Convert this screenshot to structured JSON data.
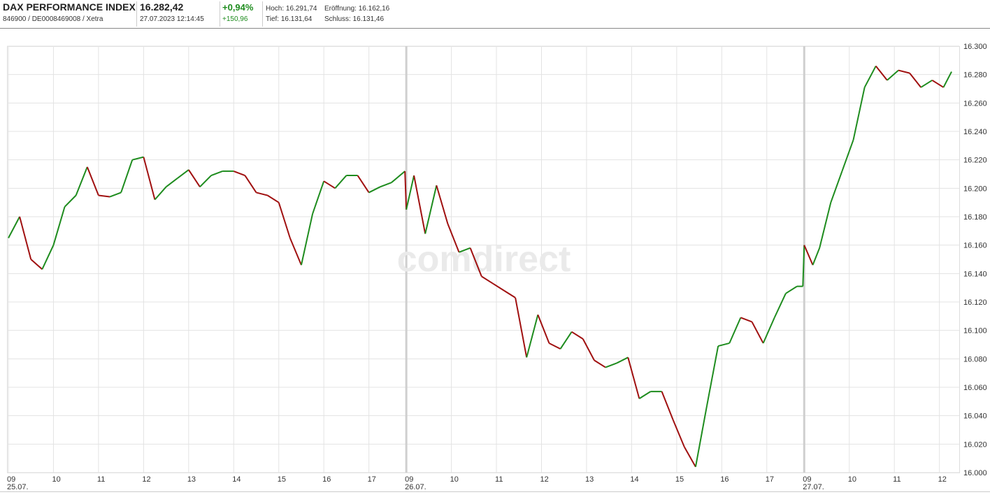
{
  "header": {
    "title": "DAX PERFORMANCE INDEX",
    "subtitle": "846900 / DE0008469008 / Xetra",
    "price": "16.282,42",
    "timestamp": "27.07.2023 12:14:45",
    "change_pct": "+0,94%",
    "change_abs": "+150,96",
    "high": "Hoch: 16.291,74",
    "open": "Eröffnung: 16.162,16",
    "low": "Tief: 16.131,64",
    "close": "Schluss: 16.131,46"
  },
  "watermark": "comdirect",
  "chart_data": {
    "type": "line",
    "up_color": "#1e8c1e",
    "down_color": "#a01010",
    "grid": true,
    "xlim": [
      0,
      21.1
    ],
    "ylim": [
      16000,
      16300
    ],
    "yticks": [
      {
        "value": 16000,
        "label": "16.000"
      },
      {
        "value": 16020,
        "label": "16.020"
      },
      {
        "value": 16040,
        "label": "16.040"
      },
      {
        "value": 16060,
        "label": "16.060"
      },
      {
        "value": 16080,
        "label": "16.080"
      },
      {
        "value": 16100,
        "label": "16.100"
      },
      {
        "value": 16120,
        "label": "16.120"
      },
      {
        "value": 16140,
        "label": "16.140"
      },
      {
        "value": 16160,
        "label": "16.160"
      },
      {
        "value": 16180,
        "label": "16.180"
      },
      {
        "value": 16200,
        "label": "16.200"
      },
      {
        "value": 16220,
        "label": "16.220"
      },
      {
        "value": 16240,
        "label": "16.240"
      },
      {
        "value": 16260,
        "label": "16.260"
      },
      {
        "value": 16280,
        "label": "16.280"
      },
      {
        "value": 16300,
        "label": "16.300"
      }
    ],
    "xticks": [
      {
        "value": 0,
        "label": "09"
      },
      {
        "value": 1,
        "label": "10"
      },
      {
        "value": 2,
        "label": "11"
      },
      {
        "value": 3,
        "label": "12"
      },
      {
        "value": 4,
        "label": "13"
      },
      {
        "value": 5,
        "label": "14"
      },
      {
        "value": 6,
        "label": "15"
      },
      {
        "value": 7,
        "label": "16"
      },
      {
        "value": 8,
        "label": "17"
      },
      {
        "value": 8.83,
        "label": "09"
      },
      {
        "value": 9.83,
        "label": "10"
      },
      {
        "value": 10.83,
        "label": "11"
      },
      {
        "value": 11.83,
        "label": "12"
      },
      {
        "value": 12.83,
        "label": "13"
      },
      {
        "value": 13.83,
        "label": "14"
      },
      {
        "value": 14.83,
        "label": "15"
      },
      {
        "value": 15.83,
        "label": "16"
      },
      {
        "value": 16.83,
        "label": "17"
      },
      {
        "value": 17.66,
        "label": "09"
      },
      {
        "value": 18.66,
        "label": "10"
      },
      {
        "value": 19.66,
        "label": "11"
      },
      {
        "value": 20.66,
        "label": "12"
      }
    ],
    "dates": [
      "25.07.",
      "26.07.",
      "27.07."
    ],
    "x": [
      0,
      0.25,
      0.5,
      0.75,
      1,
      1.25,
      1.5,
      1.75,
      2,
      2.25,
      2.5,
      2.75,
      3,
      3.25,
      3.5,
      3.75,
      4,
      4.25,
      4.5,
      4.75,
      5,
      5.25,
      5.5,
      5.75,
      6,
      6.25,
      6.5,
      6.75,
      7,
      7.25,
      7.5,
      7.75,
      8,
      8.25,
      8.5,
      8.8,
      8.83,
      9,
      9.25,
      9.5,
      9.75,
      10,
      10.25,
      10.5,
      10.75,
      11,
      11.25,
      11.5,
      11.75,
      12,
      12.25,
      12.5,
      12.75,
      13,
      13.25,
      13.5,
      13.75,
      14,
      14.25,
      14.5,
      14.75,
      15,
      15.25,
      15.5,
      15.75,
      16,
      16.25,
      16.5,
      16.75,
      17,
      17.25,
      17.5,
      17.63,
      17.66,
      17.85,
      18,
      18.25,
      18.5,
      18.75,
      19,
      19.25,
      19.5,
      19.75,
      20,
      20.25,
      20.5,
      20.75,
      20.93
    ],
    "values": [
      16165,
      16180,
      16150,
      16143,
      16160,
      16187,
      16195,
      16215,
      16195,
      16194,
      16197,
      16220,
      16222,
      16192,
      16201,
      16207,
      16213,
      16201,
      16209,
      16212,
      16212,
      16209,
      16197,
      16195,
      16190,
      16165,
      16146,
      16182,
      16205,
      16200,
      16209,
      16209,
      16197,
      16201,
      16204,
      16212,
      16185,
      16209,
      16168,
      16202,
      16175,
      16155,
      16158,
      16138,
      16133,
      16128,
      16123,
      16081,
      16111,
      16091,
      16087,
      16099,
      16094,
      16079,
      16074,
      16077,
      16081,
      16052,
      16057,
      16057,
      16037,
      16018,
      16004,
      16047,
      16089,
      16091,
      16109,
      16106,
      16091,
      16109,
      16126,
      16131,
      16131,
      16160,
      16146,
      16158,
      16190,
      16212,
      16234,
      16271,
      16286,
      16276,
      16283,
      16281,
      16271,
      16276,
      16271,
      16282
    ]
  }
}
